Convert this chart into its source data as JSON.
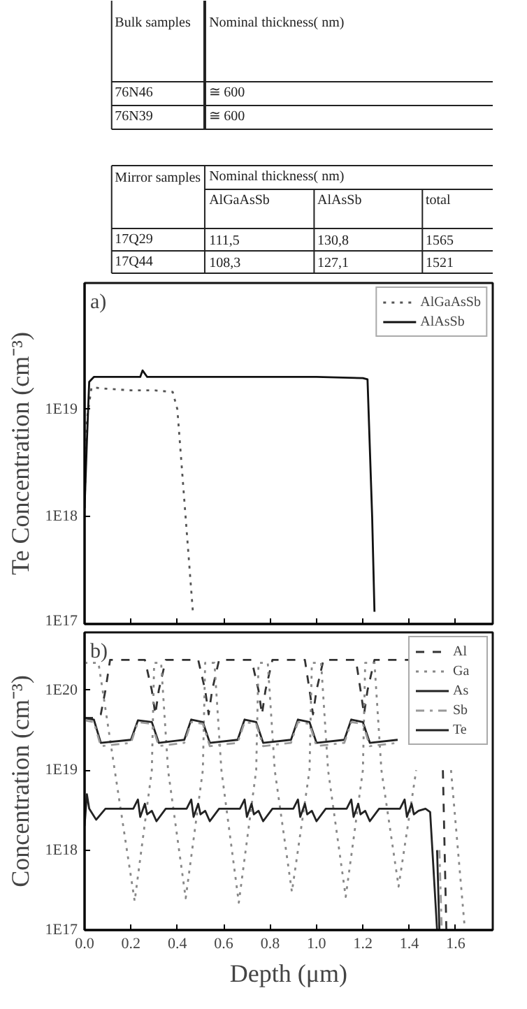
{
  "chart_data": [
    {
      "type": "other",
      "annotations": [
        "Bulk samples",
        "Nominal thickness( nm)",
        "76N46",
        "≅ 600",
        "76N39",
        "≅ 600",
        "Mirror samples",
        "Nominal thickness( nm)",
        "AlGaAsSb",
        "AlAsSb",
        "total",
        "17Q29",
        "111,5",
        "130,8",
        "1565",
        "17Q44",
        "108,3",
        "127,1",
        "1521"
      ]
    },
    {
      "type": "line",
      "ylabel": "Te Concentration (cm⁻³)",
      "annotations": [
        "a)"
      ],
      "log": "y",
      "xlim": [
        0,
        1.76
      ],
      "ylim": [
        1e+17,
        1.5e+20
      ],
      "xticks": [
        {
          "value": 0,
          "label": null
        },
        {
          "value": 0.2,
          "label": null
        },
        {
          "value": 0.4,
          "label": null
        },
        {
          "value": 0.6,
          "label": null
        },
        {
          "value": 0.8,
          "label": null
        },
        {
          "value": 1,
          "label": null
        },
        {
          "value": 1.2,
          "label": null
        },
        {
          "value": 1.4,
          "label": null
        },
        {
          "value": 1.6,
          "label": null
        }
      ],
      "yticks": [
        {
          "value": 1e+17,
          "label": "1E17"
        },
        {
          "value": 1e+18,
          "label": "1E18"
        },
        {
          "value": 1e+19,
          "label": "1E19"
        }
      ],
      "tick_labels": "y",
      "legend": "top right",
      "grid": false,
      "series": [
        {
          "name": "AlGaAsSb",
          "color": "#555555",
          "line_style": "dotted",
          "x": [
            0,
            0.01,
            0.03,
            0.1,
            0.2,
            0.3,
            0.38,
            0.4,
            0.467
          ],
          "values": [
            1.2e+18,
            8e+18,
            1.6e+19,
            1.55e+19,
            1.5e+19,
            1.5e+19,
            1.45e+19,
            1e+19,
            1.3e+17
          ]
        },
        {
          "name": "AlAsSb",
          "color": "#111111",
          "line_style": "solid",
          "x": [
            0,
            0.01,
            0.02,
            0.04,
            0.1,
            0.2,
            0.24,
            0.25,
            0.27,
            0.4,
            0.6,
            0.8,
            1.0,
            1.2,
            1.22,
            1.24,
            1.25
          ],
          "values": [
            1.2e+18,
            5e+18,
            1.8e+19,
            2e+19,
            2e+19,
            2e+19,
            2e+19,
            2.3e+19,
            2e+19,
            2e+19,
            2e+19,
            2e+19,
            2e+19,
            1.95e+19,
            1.9e+19,
            1e+18,
            1.3e+17
          ]
        }
      ]
    },
    {
      "type": "line",
      "ylabel": "Concentration (cm⁻³)",
      "xlabel": "Depth (μm)",
      "annotations": [
        "b)"
      ],
      "log": "y",
      "xlim": [
        0,
        1.76
      ],
      "ylim": [
        1e+17,
        5.3e+20
      ],
      "xticks": [
        {
          "value": 0,
          "label": "0.0"
        },
        0.2,
        0.4,
        0.6,
        0.8,
        {
          "value": 1,
          "label": "1.0"
        },
        1.2,
        1.4,
        1.6
      ],
      "yticks": [
        {
          "value": 1e+17,
          "label": "1E17"
        },
        {
          "value": 1e+18,
          "label": "1E18"
        },
        {
          "value": 1e+19,
          "label": "1E19"
        },
        {
          "value": 1e+20,
          "label": "1E20"
        }
      ],
      "legend": "top right",
      "grid": false,
      "series": [
        {
          "name": "Al",
          "color": "#333333",
          "line_style": "dashed",
          "x": [
            0,
            0.05,
            0.07,
            0.09,
            0.11,
            0.26,
            0.29,
            0.305,
            0.32,
            0.35,
            0.49,
            0.52,
            0.535,
            0.55,
            0.58,
            0.72,
            0.75,
            0.765,
            0.78,
            0.81,
            0.95,
            0.97,
            0.985,
            1.0,
            1.03,
            1.17,
            1.19,
            1.205,
            1.22,
            1.25,
            1.4,
            1.42,
            1.435,
            1.45,
            1.48,
            1.53,
            1.545,
            1.56
          ],
          "values": [
            4.5e+19,
            4.5e+19,
            5e+19,
            1e+20,
            2.4e+20,
            2.4e+20,
            1e+20,
            5e+19,
            1e+20,
            2.4e+20,
            2.4e+20,
            1e+20,
            5e+19,
            1e+20,
            2.4e+20,
            2.4e+20,
            1e+20,
            5e+19,
            1e+20,
            2.4e+20,
            2.4e+20,
            1e+20,
            5e+19,
            1e+20,
            2.4e+20,
            2.4e+20,
            1e+20,
            5e+19,
            1e+20,
            2.4e+20,
            2.4e+20,
            null,
            null,
            null,
            null,
            null,
            1e+19,
            1e+17
          ]
        },
        {
          "name": "Ga",
          "color": "#888888",
          "line_style": "dotted",
          "x": [
            0,
            0.06,
            0.13,
            0.216,
            0.29,
            0.3,
            0.33,
            0.36,
            0.436,
            0.51,
            0.52,
            0.56,
            0.59,
            0.665,
            0.74,
            0.75,
            0.79,
            0.82,
            0.894,
            0.97,
            0.98,
            1.02,
            1.05,
            1.126,
            1.2,
            1.21,
            1.25,
            1.28,
            1.354,
            1.43,
            1.44,
            1.5,
            1.58,
            1.64
          ],
          "values": [
            2.2e+20,
            2.2e+20,
            1e+19,
            2.3e+17,
            1e+19,
            2.2e+20,
            2.2e+20,
            1e+19,
            2.5e+17,
            1e+19,
            2.2e+20,
            2.2e+20,
            1e+19,
            2.2e+17,
            1e+19,
            2.2e+20,
            2.2e+20,
            1e+19,
            3e+17,
            1e+19,
            2.2e+20,
            2.2e+20,
            1e+19,
            2.6e+17,
            1e+19,
            2.2e+20,
            2.2e+20,
            1e+19,
            3.5e+17,
            1e+19,
            null,
            null,
            1e+19,
            1e+17
          ]
        },
        {
          "name": "As",
          "color": "#222222",
          "line_style": "solid",
          "x": [
            0,
            0.04,
            0.07,
            0.2,
            0.23,
            0.29,
            0.32,
            0.43,
            0.46,
            0.51,
            0.54,
            0.66,
            0.69,
            0.74,
            0.77,
            0.89,
            0.92,
            0.97,
            1.0,
            1.12,
            1.15,
            1.2,
            1.23,
            1.35,
            1.38,
            1.42,
            1.45,
            1.48,
            1.5,
            1.52,
            1.53
          ],
          "values": [
            4.5e+19,
            4.3e+19,
            2.2e+19,
            2.4e+19,
            4.2e+19,
            4e+19,
            2.2e+19,
            2.4e+19,
            4.3e+19,
            4e+19,
            2.2e+19,
            2.4e+19,
            4.3e+19,
            4e+19,
            2.2e+19,
            2.4e+19,
            4.3e+19,
            4e+19,
            2.2e+19,
            2.4e+19,
            4.3e+19,
            4e+19,
            2.2e+19,
            2.4e+19,
            null,
            null,
            null,
            null,
            null,
            1e+18,
            1e+17
          ]
        },
        {
          "name": "Sb",
          "color": "#999999",
          "line_style": "dashdot",
          "x": [
            0,
            0.04,
            0.07,
            0.2,
            0.23,
            0.29,
            0.32,
            0.43,
            0.46,
            0.51,
            0.54,
            0.66,
            0.69,
            0.74,
            0.77,
            0.89,
            0.92,
            0.97,
            1.0,
            1.12,
            1.15,
            1.2,
            1.23,
            1.35,
            1.38,
            1.42,
            1.45,
            1.48,
            1.51,
            1.53,
            1.54
          ],
          "values": [
            4.2e+19,
            4e+19,
            2e+19,
            2.2e+19,
            4e+19,
            3.8e+19,
            2e+19,
            2.2e+19,
            4e+19,
            3.8e+19,
            2e+19,
            2.2e+19,
            4e+19,
            3.8e+19,
            2e+19,
            2.2e+19,
            4e+19,
            3.8e+19,
            2e+19,
            2.2e+19,
            4e+19,
            3.8e+19,
            2e+19,
            2.2e+19,
            null,
            null,
            null,
            null,
            null,
            1e+18,
            1e+17
          ]
        },
        {
          "name": "Te",
          "color": "#222222",
          "line_style": "solid",
          "x": [
            0,
            0.01,
            0.02,
            0.05,
            0.09,
            0.21,
            0.23,
            0.24,
            0.26,
            0.27,
            0.29,
            0.31,
            0.35,
            0.44,
            0.46,
            0.47,
            0.49,
            0.5,
            0.52,
            0.54,
            0.58,
            0.67,
            0.69,
            0.7,
            0.72,
            0.73,
            0.75,
            0.77,
            0.81,
            0.9,
            0.92,
            0.93,
            0.95,
            0.96,
            0.98,
            1.0,
            1.04,
            1.13,
            1.15,
            1.16,
            1.18,
            1.19,
            1.21,
            1.23,
            1.27,
            1.36,
            1.38,
            1.39,
            1.41,
            1.42,
            1.44,
            1.47,
            1.49,
            1.52
          ],
          "values": [
            2e+18,
            5e+18,
            3.3e+18,
            2.4e+18,
            3.3e+18,
            3.3e+18,
            4.3e+18,
            2.6e+18,
            3.8e+18,
            2.8e+18,
            3.1e+18,
            2.3e+18,
            3.3e+18,
            3.3e+18,
            4.3e+18,
            2.6e+18,
            3.8e+18,
            2.8e+18,
            3.1e+18,
            2.3e+18,
            3.3e+18,
            3.3e+18,
            4.3e+18,
            2.6e+18,
            3.8e+18,
            2.8e+18,
            3.1e+18,
            2.3e+18,
            3.3e+18,
            3.3e+18,
            4.3e+18,
            2.6e+18,
            3.8e+18,
            2.8e+18,
            3.1e+18,
            2.3e+18,
            3.3e+18,
            3.3e+18,
            4.3e+18,
            2.6e+18,
            3.8e+18,
            2.8e+18,
            3.1e+18,
            2.3e+18,
            3.3e+18,
            3.3e+18,
            4.3e+18,
            2.6e+18,
            3.8e+18,
            2.8e+18,
            3.1e+18,
            3.3e+18,
            3e+18,
            1e+17
          ]
        }
      ]
    }
  ]
}
